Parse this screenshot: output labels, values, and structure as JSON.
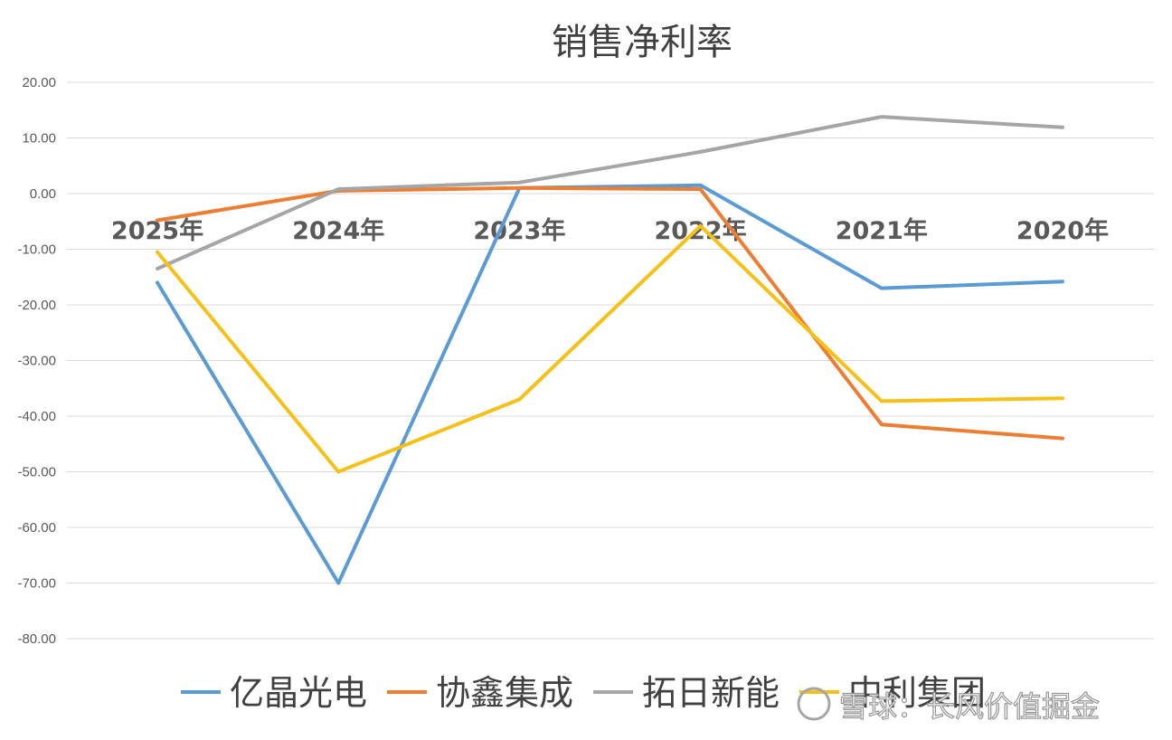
{
  "chart_data": {
    "type": "line",
    "title": "销售净利率",
    "categories": [
      "2025年",
      "2024年",
      "2023年",
      "2022年",
      "2021年",
      "2020年"
    ],
    "y_ticks": [
      "20.00",
      "10.00",
      "0.00",
      "-10.00",
      "-20.00",
      "-30.00",
      "-40.00",
      "-50.00",
      "-60.00",
      "-70.00",
      "-80.00"
    ],
    "ylim": [
      -80,
      20
    ],
    "grid": true,
    "legend_position": "bottom",
    "series": [
      {
        "name": "亿晶光电",
        "color": "#5b9bd5",
        "values": [
          -16.0,
          -70.0,
          1.0,
          1.5,
          -17.0,
          -15.8
        ]
      },
      {
        "name": "协鑫集成",
        "color": "#ed7d31",
        "values": [
          -4.8,
          0.5,
          1.0,
          0.8,
          -41.5,
          -44.0
        ]
      },
      {
        "name": "拓日新能",
        "color": "#a5a5a5",
        "values": [
          -13.5,
          0.8,
          2.0,
          7.5,
          13.8,
          11.9
        ]
      },
      {
        "name": "中利集团",
        "color": "#f5c117",
        "values": [
          -10.5,
          -50.0,
          -37.0,
          -5.8,
          -37.3,
          -36.8
        ]
      }
    ]
  },
  "watermark": {
    "text": "雪球：长风价值掘金"
  }
}
